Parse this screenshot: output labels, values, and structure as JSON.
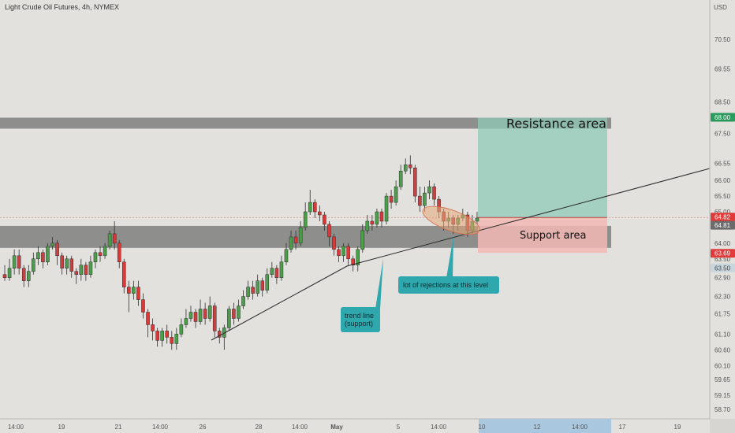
{
  "header": {
    "title": "Light Crude Oil Futures, 4h, NYMEX"
  },
  "colors": {
    "background": "#e2e1dd",
    "up": "#4aa048",
    "down": "#d63a3a",
    "zone": "#7f7f7f",
    "target": "#8fc9b8",
    "stop": "#f2b8b4",
    "callout": "#2ea7ad",
    "price_red": "#e03a3a",
    "price_grey": "#6b6b6b",
    "price_green": "#2b9a5c"
  },
  "chart_data": {
    "type": "candlestick",
    "currency": "USD",
    "ylim": [
      58.4,
      71.3
    ],
    "x_tick_labels": [
      "14:00",
      "19",
      "21",
      "14:00",
      "26",
      "28",
      "14:00",
      "May",
      "5",
      "14:00",
      "10",
      "12",
      "14:00",
      "17",
      "19"
    ],
    "y_tick_labels": [
      "70.50",
      "69.55",
      "68.50",
      "67.50",
      "66.55",
      "66.00",
      "65.50",
      "65.00",
      "64.00",
      "63.50",
      "62.90",
      "62.30",
      "61.75",
      "61.10",
      "60.60",
      "60.10",
      "59.65",
      "59.15",
      "58.70"
    ],
    "price_tags": [
      {
        "value": "68.00",
        "kind": "green"
      },
      {
        "value": "64.82",
        "kind": "red"
      },
      {
        "value": "64.81",
        "kind": "grey"
      },
      {
        "value": "63.69",
        "kind": "red"
      },
      {
        "value": "63.50",
        "kind": "plain"
      }
    ],
    "candles": [
      [
        63.0,
        62.9,
        63.3,
        62.8
      ],
      [
        62.9,
        63.2,
        63.5,
        62.8
      ],
      [
        63.2,
        63.6,
        63.8,
        63.0
      ],
      [
        63.6,
        63.2,
        63.8,
        63.0
      ],
      [
        63.2,
        62.8,
        63.3,
        62.6
      ],
      [
        62.8,
        63.1,
        63.3,
        62.6
      ],
      [
        63.1,
        63.5,
        63.7,
        63.0
      ],
      [
        63.5,
        63.7,
        63.9,
        63.3
      ],
      [
        63.7,
        63.4,
        63.8,
        63.2
      ],
      [
        63.4,
        63.9,
        64.0,
        63.3
      ],
      [
        63.9,
        64.0,
        64.2,
        63.8
      ],
      [
        64.0,
        63.6,
        64.1,
        63.3
      ],
      [
        63.6,
        63.2,
        63.7,
        63.0
      ],
      [
        63.2,
        63.5,
        63.6,
        63.0
      ],
      [
        63.5,
        63.1,
        63.6,
        62.9
      ],
      [
        63.1,
        63.0,
        63.2,
        62.7
      ],
      [
        63.0,
        63.3,
        63.5,
        62.8
      ],
      [
        63.3,
        63.0,
        63.4,
        62.8
      ],
      [
        63.0,
        63.4,
        63.6,
        62.9
      ],
      [
        63.4,
        63.7,
        63.8,
        63.2
      ],
      [
        63.7,
        63.6,
        63.9,
        63.4
      ],
      [
        63.6,
        63.9,
        64.0,
        63.5
      ],
      [
        63.9,
        64.3,
        64.4,
        63.8
      ],
      [
        64.3,
        64.0,
        64.7,
        63.8
      ],
      [
        64.0,
        63.4,
        64.1,
        63.2
      ],
      [
        63.4,
        62.6,
        63.5,
        62.4
      ],
      [
        62.6,
        62.4,
        62.8,
        61.8
      ],
      [
        62.4,
        62.6,
        62.8,
        62.2
      ],
      [
        62.6,
        62.2,
        62.8,
        62.0
      ],
      [
        62.2,
        61.8,
        62.4,
        61.6
      ],
      [
        61.8,
        61.4,
        61.9,
        61.0
      ],
      [
        61.4,
        61.2,
        61.6,
        60.9
      ],
      [
        61.2,
        60.9,
        61.3,
        60.7
      ],
      [
        60.9,
        61.2,
        61.3,
        60.7
      ],
      [
        61.2,
        61.0,
        61.4,
        60.8
      ],
      [
        61.0,
        60.8,
        61.2,
        60.6
      ],
      [
        60.8,
        61.1,
        61.3,
        60.6
      ],
      [
        61.1,
        61.4,
        61.6,
        61.0
      ],
      [
        61.4,
        61.6,
        61.9,
        61.3
      ],
      [
        61.6,
        61.8,
        62.0,
        61.5
      ],
      [
        61.8,
        61.5,
        61.9,
        61.3
      ],
      [
        61.5,
        61.9,
        62.2,
        61.4
      ],
      [
        61.9,
        61.6,
        62.1,
        61.4
      ],
      [
        61.6,
        62.0,
        62.3,
        61.5
      ],
      [
        62.0,
        61.2,
        62.1,
        61.0
      ],
      [
        61.2,
        61.0,
        61.3,
        60.8
      ],
      [
        61.0,
        61.3,
        61.4,
        60.6
      ],
      [
        61.3,
        61.9,
        62.0,
        61.2
      ],
      [
        61.9,
        61.6,
        62.1,
        61.4
      ],
      [
        61.6,
        62.0,
        62.2,
        61.5
      ],
      [
        62.0,
        62.3,
        62.5,
        61.9
      ],
      [
        62.3,
        62.6,
        62.8,
        62.2
      ],
      [
        62.6,
        62.4,
        62.8,
        62.2
      ],
      [
        62.4,
        62.8,
        63.0,
        62.3
      ],
      [
        62.8,
        62.5,
        62.9,
        62.3
      ],
      [
        62.5,
        63.0,
        63.2,
        62.4
      ],
      [
        63.0,
        63.2,
        63.4,
        62.9
      ],
      [
        63.2,
        62.9,
        63.3,
        62.7
      ],
      [
        62.9,
        63.4,
        63.6,
        62.8
      ],
      [
        63.4,
        63.8,
        64.0,
        63.3
      ],
      [
        63.8,
        64.2,
        64.4,
        63.7
      ],
      [
        64.2,
        64.0,
        64.4,
        63.8
      ],
      [
        64.0,
        64.5,
        64.7,
        63.9
      ],
      [
        64.5,
        65.0,
        65.3,
        64.4
      ],
      [
        65.0,
        65.3,
        65.7,
        64.9
      ],
      [
        65.3,
        65.0,
        65.4,
        64.8
      ],
      [
        65.0,
        64.9,
        65.2,
        64.7
      ],
      [
        64.9,
        64.6,
        65.0,
        64.4
      ],
      [
        64.6,
        64.2,
        64.7,
        63.9
      ],
      [
        64.2,
        63.8,
        64.3,
        63.6
      ],
      [
        63.8,
        63.6,
        63.9,
        63.4
      ],
      [
        63.6,
        63.9,
        64.0,
        63.4
      ],
      [
        63.9,
        63.5,
        64.0,
        63.3
      ],
      [
        63.5,
        63.3,
        63.6,
        63.1
      ],
      [
        63.3,
        63.8,
        63.9,
        63.1
      ],
      [
        63.8,
        64.4,
        64.6,
        63.7
      ],
      [
        64.4,
        64.7,
        64.9,
        64.3
      ],
      [
        64.7,
        64.6,
        64.9,
        64.4
      ],
      [
        64.6,
        65.0,
        65.1,
        64.5
      ],
      [
        65.0,
        64.7,
        65.1,
        64.5
      ],
      [
        64.7,
        65.5,
        65.6,
        64.6
      ],
      [
        65.5,
        65.3,
        65.7,
        65.1
      ],
      [
        65.3,
        65.8,
        66.0,
        65.2
      ],
      [
        65.8,
        66.3,
        66.5,
        65.7
      ],
      [
        66.3,
        66.5,
        66.7,
        66.2
      ],
      [
        66.5,
        66.4,
        66.8,
        66.2
      ],
      [
        66.4,
        65.5,
        66.5,
        65.3
      ],
      [
        65.5,
        65.2,
        65.8,
        65.0
      ],
      [
        65.2,
        65.6,
        65.8,
        65.0
      ],
      [
        65.6,
        65.8,
        66.0,
        65.4
      ],
      [
        65.8,
        65.4,
        65.9,
        65.2
      ],
      [
        65.4,
        65.0,
        65.5,
        64.8
      ],
      [
        65.0,
        64.7,
        65.1,
        64.4
      ],
      [
        64.7,
        64.8,
        65.0,
        64.5
      ],
      [
        64.8,
        64.6,
        64.9,
        64.3
      ],
      [
        64.6,
        64.8,
        64.9,
        64.4
      ],
      [
        64.8,
        64.9,
        65.1,
        64.7
      ],
      [
        64.9,
        64.4,
        65.0,
        64.2
      ],
      [
        64.4,
        64.7,
        64.9,
        64.3
      ],
      [
        64.7,
        64.8,
        65.0,
        64.6
      ]
    ]
  },
  "zones": {
    "resistance": {
      "label": "Resistance area",
      "top": 68.0,
      "bottom": 67.65
    },
    "support": {
      "label": "Support area",
      "top": 64.55,
      "bottom": 63.85
    },
    "position": {
      "entry": 64.82,
      "target": 68.0,
      "stop": 63.69
    },
    "trend_line": {
      "x": [
        1.0,
        3.2,
        18.5
      ],
      "y": [
        60.8,
        63.15,
        66.1
      ]
    }
  },
  "annotations": {
    "trend": {
      "line1": "trend line",
      "line2": "(support)"
    },
    "rejections": {
      "text": "lot of rejections at this level"
    }
  }
}
